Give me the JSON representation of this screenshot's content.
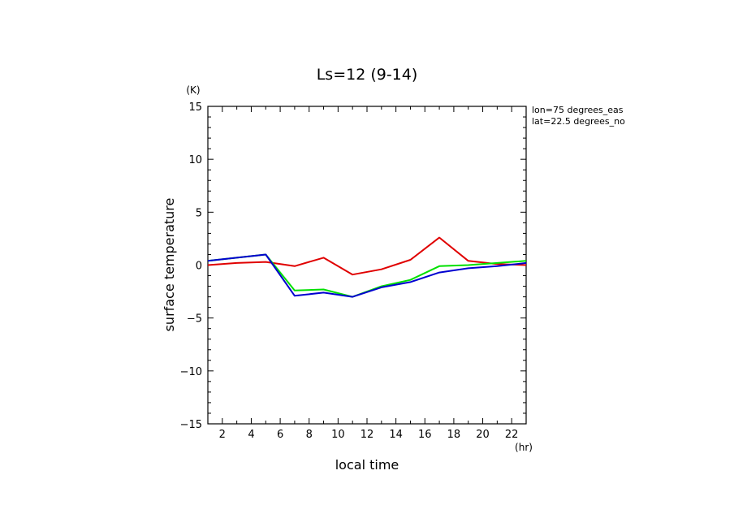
{
  "chart_data": {
    "type": "line",
    "title": "Ls=12 (9-14)",
    "xlabel": "local time",
    "ylabel": "surface temperature",
    "x_unit": "(hr)",
    "y_unit": "(K)",
    "xlim": [
      1,
      23
    ],
    "ylim": [
      -15,
      15
    ],
    "x_ticks": [
      2,
      4,
      6,
      8,
      10,
      12,
      14,
      16,
      18,
      20,
      22
    ],
    "y_ticks": [
      15,
      10,
      5,
      0,
      -5,
      -10,
      -15
    ],
    "y_tick_labels": [
      "15",
      "10",
      "5",
      "0",
      "−5",
      "−10",
      "−15"
    ],
    "annotations": [
      "lon=75 degrees_eas",
      "lat=22.5 degrees_no"
    ],
    "x": [
      1,
      3,
      5,
      7,
      9,
      11,
      13,
      15,
      17,
      19,
      21,
      23
    ],
    "series": [
      {
        "color": "#e00000",
        "values": [
          0.0,
          0.2,
          0.3,
          -0.1,
          0.7,
          -0.9,
          -0.4,
          0.5,
          2.6,
          0.4,
          0.1,
          0.0
        ]
      },
      {
        "color": "#00e000",
        "values": [
          0.4,
          0.7,
          1.0,
          -2.4,
          -2.3,
          -3.0,
          -2.0,
          -1.4,
          -0.1,
          0.0,
          0.2,
          0.4
        ]
      },
      {
        "color": "#0000d0",
        "values": [
          0.4,
          0.7,
          1.0,
          -2.9,
          -2.6,
          -3.0,
          -2.1,
          -1.6,
          -0.7,
          -0.3,
          -0.1,
          0.2
        ]
      }
    ]
  }
}
